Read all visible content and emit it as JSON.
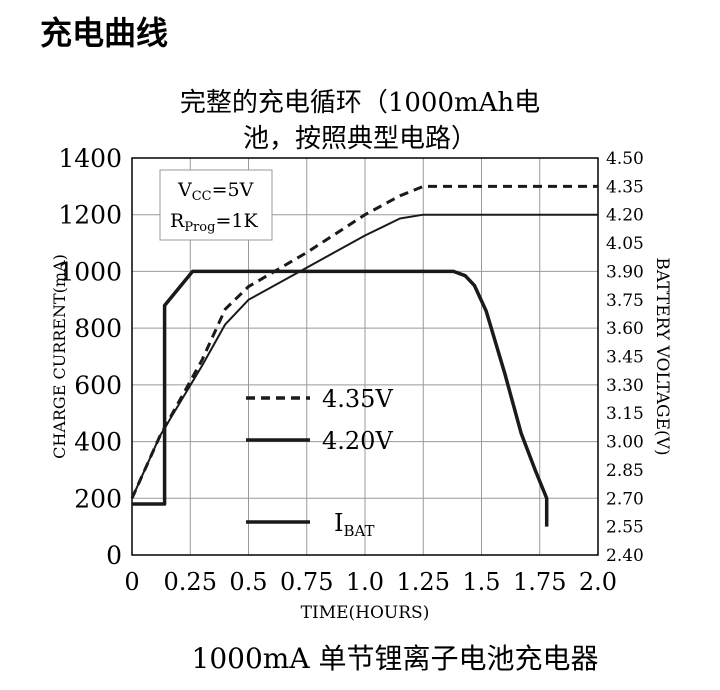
{
  "page": {
    "heading": "充电曲线",
    "caption": "1000mA 单节锂离子电池充电器"
  },
  "chart_data": {
    "type": "line",
    "title_line1": "完整的充电循环（1000mAh电",
    "title_line2": "池，按照典型电路）",
    "xlabel": "TIME(HOURS)",
    "ylabel_left": "CHARGE CURRENT(mA)",
    "ylabel_right": "BATTERY VOLTAGE(V)",
    "xlim": [
      0,
      2.0
    ],
    "ylim_left": [
      0,
      1400
    ],
    "ylim_right": [
      2.4,
      4.5
    ],
    "x_ticks": [
      "0",
      "0.25",
      "0.5",
      "0.75",
      "1.0",
      "1.25",
      "1.5",
      "1.75",
      "2.0"
    ],
    "y_ticks_left": [
      "0",
      "200",
      "400",
      "600",
      "800",
      "1000",
      "1200",
      "1400"
    ],
    "y_ticks_right": [
      "2.40",
      "2.55",
      "2.70",
      "2.85",
      "3.00",
      "3.15",
      "3.30",
      "3.45",
      "3.60",
      "3.75",
      "3.90",
      "4.05",
      "4.20",
      "4.35",
      "4.50"
    ],
    "grid": true,
    "annotation": {
      "vcc_label": "VCC=5V",
      "vcc_main": "V",
      "vcc_sub": "CC",
      "vcc_val": "=5V",
      "rprog_main": "R",
      "rprog_sub": "Prog",
      "rprog_val": "=1K"
    },
    "legend": [
      {
        "main": "4.35V",
        "sub": "",
        "style": "dashed"
      },
      {
        "main": "4.20V",
        "sub": "",
        "style": "solid"
      },
      {
        "main": "I",
        "sub": "BAT",
        "style": "solid"
      }
    ],
    "series": [
      {
        "name": "4.35V",
        "axis": "right",
        "style": "dashed",
        "width": 3,
        "x": [
          0,
          0.12,
          0.3,
          0.4,
          0.5,
          0.75,
          1.0,
          1.15,
          1.25,
          2.0
        ],
        "y": [
          2.7,
          3.03,
          3.43,
          3.7,
          3.82,
          4.0,
          4.2,
          4.3,
          4.35,
          4.35
        ]
      },
      {
        "name": "4.20V",
        "axis": "right",
        "style": "solid",
        "width": 2,
        "x": [
          0,
          0.12,
          0.3,
          0.4,
          0.5,
          0.75,
          1.0,
          1.15,
          1.25,
          2.0
        ],
        "y": [
          2.7,
          3.03,
          3.4,
          3.62,
          3.75,
          3.92,
          4.09,
          4.18,
          4.2,
          4.2
        ]
      },
      {
        "name": "IBAT",
        "axis": "left",
        "style": "solid",
        "width": 3.5,
        "x": [
          0,
          0.14,
          0.14,
          0.26,
          1.38,
          1.43,
          1.47,
          1.52,
          1.6,
          1.67,
          1.73,
          1.78,
          1.78
        ],
        "y": [
          180,
          180,
          880,
          1000,
          1000,
          985,
          950,
          860,
          640,
          430,
          300,
          200,
          100
        ]
      }
    ]
  }
}
